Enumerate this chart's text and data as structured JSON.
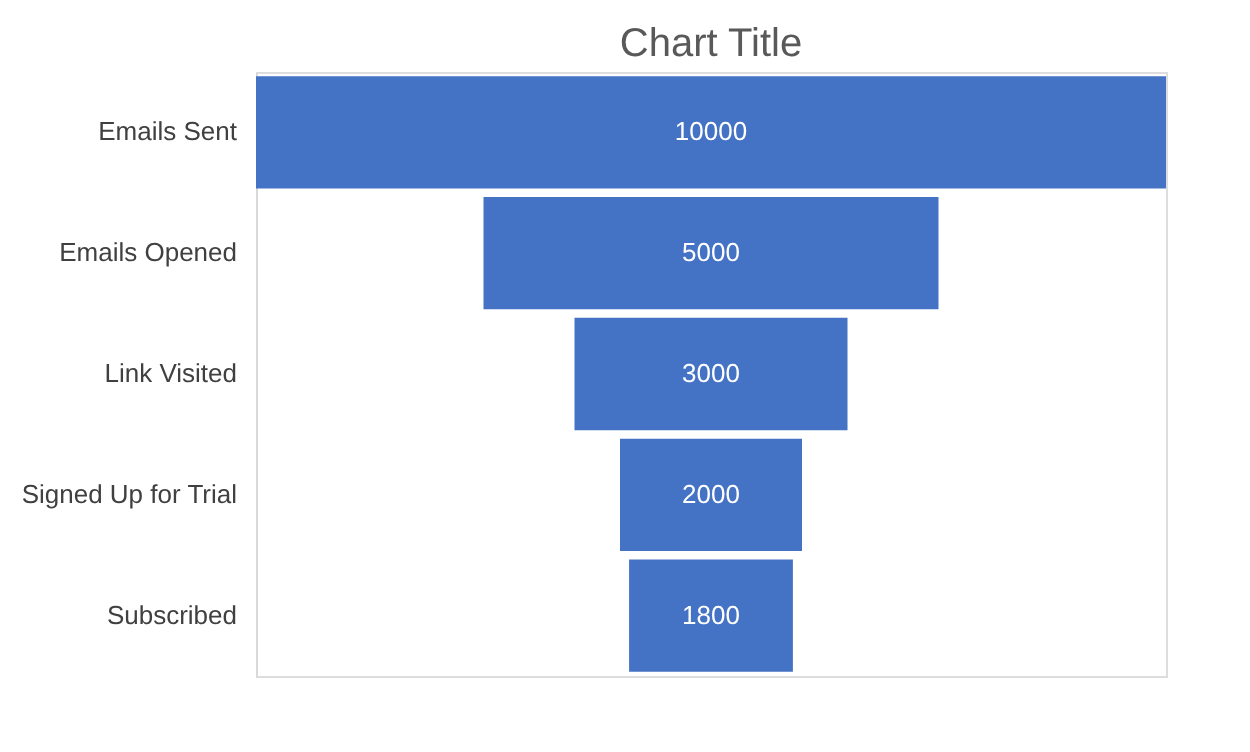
{
  "chart_data": {
    "type": "other",
    "title": "Chart Title",
    "categories": [
      "Emails Sent",
      "Emails Opened",
      "Link Visited",
      "Signed Up for Trial",
      "Subscribed"
    ],
    "values": [
      10000,
      5000,
      3000,
      2000,
      1800
    ],
    "color": "#4472c4",
    "data_labels": true
  }
}
